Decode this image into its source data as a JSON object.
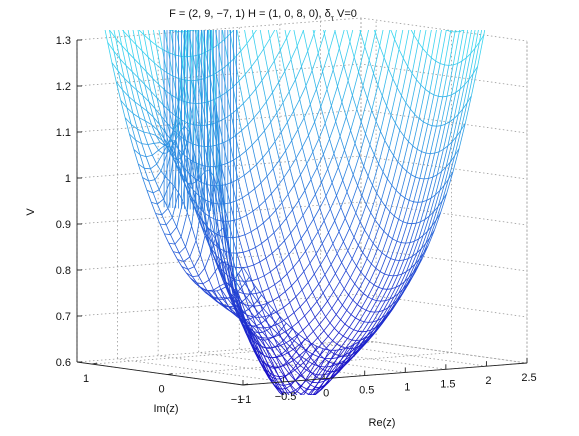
{
  "chart_data": {
    "type": "surface",
    "title": "F = (2, 9, −7, 1) H = (1, 0, 8, 0), δ",
    "title_sub": "τ",
    "title_tail": " V=0",
    "xlabel": "Re(z)",
    "ylabel": "Im(z)",
    "zlabel": "V",
    "xlim": [
      -1,
      2.5
    ],
    "ylim": [
      -1,
      1.2
    ],
    "zlim": [
      0.6,
      1.3
    ],
    "x_ticks": [
      "−1",
      "−0.5",
      "0",
      "0.5",
      "1",
      "1.5",
      "2",
      "2.5"
    ],
    "y_ticks": [
      "1",
      "0",
      "−1"
    ],
    "z_ticks": [
      "0.6",
      "0.7",
      "0.8",
      "0.9",
      "1",
      "1.1",
      "1.2",
      "1.3"
    ],
    "grid": true,
    "colormap": [
      "#1a10c8",
      "#3cd7f0"
    ],
    "surface_features": {
      "global_min_value": 0.575,
      "global_min_location": [
        0.1,
        -0.5
      ],
      "pole_location": [
        -0.55,
        0.05
      ],
      "left_rim_value": 0.88,
      "back_ridge_value": 1.3
    }
  }
}
